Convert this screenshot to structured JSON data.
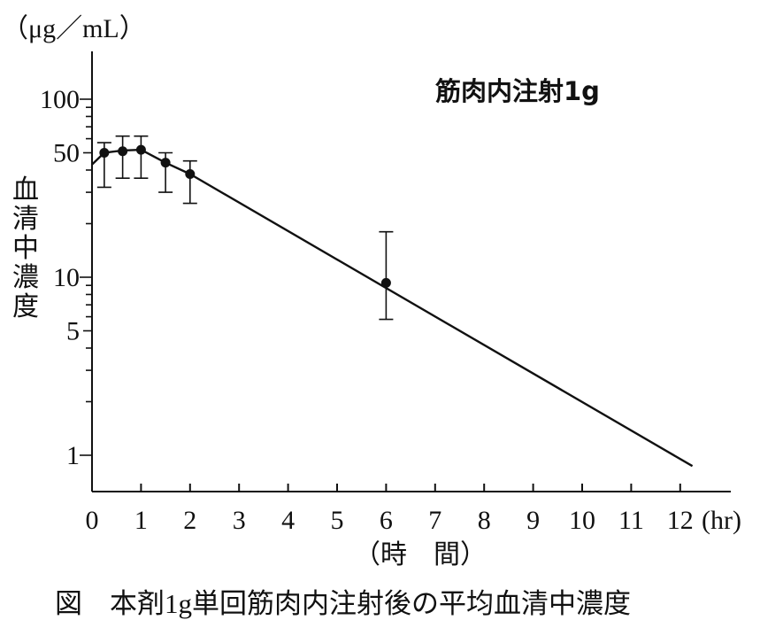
{
  "chart_data": {
    "type": "line",
    "y_unit": "（μg／mL）",
    "ylabel": "血清中濃度",
    "xlabel": "（時　間）",
    "x_unit": "(hr)",
    "y_scale": "log",
    "ylim": [
      0.82,
      160
    ],
    "xlim": [
      0,
      13
    ],
    "x_ticks": [
      0,
      1,
      2,
      3,
      4,
      5,
      6,
      7,
      8,
      9,
      10,
      11,
      12
    ],
    "y_tick_labels": [
      1,
      5,
      10,
      50,
      100
    ],
    "grid": false,
    "series_label": "筋肉内注射1g",
    "caption": "図　本剤1g単回筋肉内注射後の平均血清中濃度",
    "points": [
      {
        "x": 0.25,
        "y": 50,
        "err_low": 32,
        "err_high": 57
      },
      {
        "x": 0.625,
        "y": 51,
        "err_low": 36,
        "err_high": 62
      },
      {
        "x": 1.0,
        "y": 52,
        "err_low": 36,
        "err_high": 62
      },
      {
        "x": 1.5,
        "y": 44,
        "err_low": 30,
        "err_high": 50
      },
      {
        "x": 2.0,
        "y": 38,
        "err_low": 26,
        "err_high": 45
      },
      {
        "x": 6.0,
        "y": 9.3,
        "err_low": 5.8,
        "err_high": 18
      }
    ],
    "curve": [
      [
        0.0,
        43
      ],
      [
        0.25,
        50
      ],
      [
        0.625,
        51.5
      ],
      [
        1.0,
        52
      ],
      [
        1.5,
        44
      ],
      [
        2.0,
        38
      ],
      [
        12.25,
        0.87
      ]
    ]
  }
}
